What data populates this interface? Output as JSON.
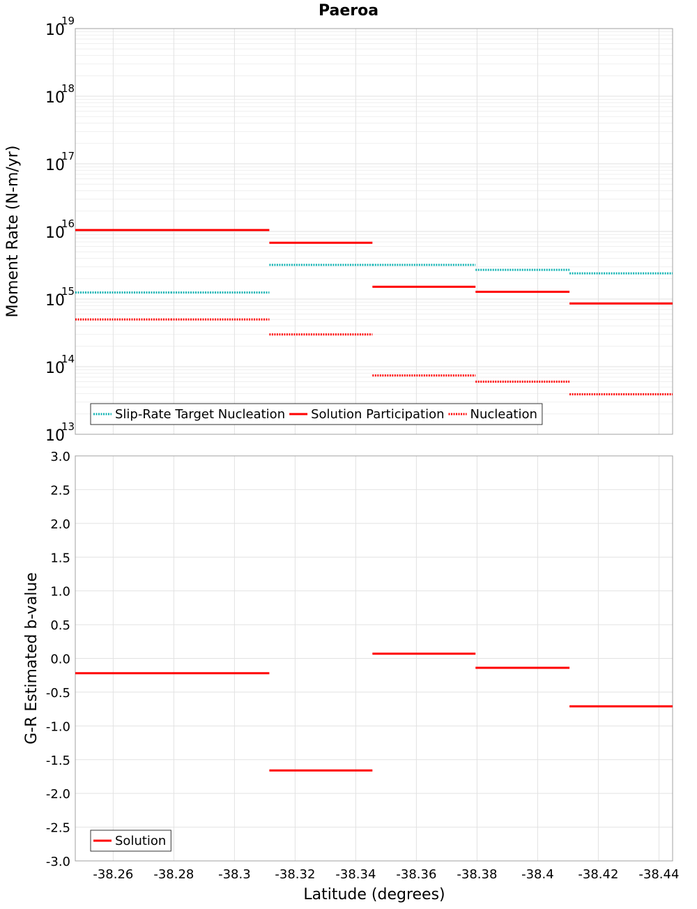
{
  "chart_data": {
    "type": "line",
    "title": "Paeroa",
    "xlabel": "Latitude (degrees)",
    "x_ticks": [
      "-38.26",
      "-38.28",
      "-38.3",
      "-38.32",
      "-38.34",
      "-38.36",
      "-38.38",
      "-38.4",
      "-38.42",
      "-38.44"
    ],
    "x_tick_values": [
      -38.26,
      -38.28,
      -38.3,
      -38.32,
      -38.34,
      -38.36,
      -38.38,
      -38.4,
      -38.42,
      -38.44
    ],
    "xlim": [
      -38.2475,
      -38.4445
    ],
    "panels": [
      {
        "ylabel": "Moment Rate (N-m/yr)",
        "yscale": "log",
        "ylim": [
          10000000000000.0,
          1e+19
        ],
        "y_ticks": [
          {
            "base": "10",
            "exp": "19"
          },
          {
            "base": "10",
            "exp": "18"
          },
          {
            "base": "10",
            "exp": "17"
          },
          {
            "base": "10",
            "exp": "16"
          },
          {
            "base": "10",
            "exp": "15"
          },
          {
            "base": "10",
            "exp": "14"
          },
          {
            "base": "10",
            "exp": "13"
          }
        ],
        "y_tick_values": [
          1e+19,
          1e+18,
          1e+17,
          1e+16,
          1000000000000000.0,
          100000000000000.0,
          10000000000000.0
        ],
        "legend": {
          "placement": "bottom-left",
          "entries": [
            "Slip-Rate Target Nucleation",
            "Solution Participation",
            "Nucleation"
          ]
        },
        "series": [
          {
            "name": "Slip-Rate Target Nucleation",
            "color": "#12b3b3",
            "style": "dotted",
            "segments": [
              {
                "x": [
                  -38.2475,
                  -38.279
                ],
                "y": 1250000000000000.0
              },
              {
                "x": [
                  -38.279,
                  -38.3115
                ],
                "y": 1250000000000000.0
              },
              {
                "x": [
                  -38.3115,
                  -38.3455
                ],
                "y": 3200000000000000.0
              },
              {
                "x": [
                  -38.3455,
                  -38.3795
                ],
                "y": 3200000000000000.0
              },
              {
                "x": [
                  -38.3795,
                  -38.4105
                ],
                "y": 2700000000000000.0
              },
              {
                "x": [
                  -38.4105,
                  -38.4445
                ],
                "y": 2400000000000000.0
              }
            ]
          },
          {
            "name": "Solution Participation",
            "color": "#ff0000",
            "style": "solid",
            "segments": [
              {
                "x": [
                  -38.2475,
                  -38.279
                ],
                "y": 1.05e+16
              },
              {
                "x": [
                  -38.279,
                  -38.3115
                ],
                "y": 1.05e+16
              },
              {
                "x": [
                  -38.3115,
                  -38.3455
                ],
                "y": 6800000000000000.0
              },
              {
                "x": [
                  -38.3455,
                  -38.3795
                ],
                "y": 1520000000000000.0
              },
              {
                "x": [
                  -38.3795,
                  -38.4105
                ],
                "y": 1280000000000000.0
              },
              {
                "x": [
                  -38.4105,
                  -38.4445
                ],
                "y": 860000000000000.0
              }
            ]
          },
          {
            "name": "Nucleation",
            "color": "#ff0000",
            "style": "dotted",
            "segments": [
              {
                "x": [
                  -38.2475,
                  -38.279
                ],
                "y": 500000000000000.0
              },
              {
                "x": [
                  -38.279,
                  -38.3115
                ],
                "y": 500000000000000.0
              },
              {
                "x": [
                  -38.3115,
                  -38.3455
                ],
                "y": 300000000000000.0
              },
              {
                "x": [
                  -38.3455,
                  -38.3795
                ],
                "y": 74000000000000.0
              },
              {
                "x": [
                  -38.3795,
                  -38.4105
                ],
                "y": 60000000000000.0
              },
              {
                "x": [
                  -38.4105,
                  -38.4445
                ],
                "y": 39000000000000.0
              }
            ]
          }
        ]
      },
      {
        "ylabel": "G-R Estimated b-value",
        "yscale": "linear",
        "ylim": [
          -3.0,
          3.0
        ],
        "y_ticks": [
          "3.0",
          "2.5",
          "2.0",
          "1.5",
          "1.0",
          "0.5",
          "0.0",
          "-0.5",
          "-1.0",
          "-1.5",
          "-2.0",
          "-2.5",
          "-3.0"
        ],
        "y_tick_values": [
          3.0,
          2.5,
          2.0,
          1.5,
          1.0,
          0.5,
          0.0,
          -0.5,
          -1.0,
          -1.5,
          -2.0,
          -2.5,
          -3.0
        ],
        "legend": {
          "placement": "bottom-left",
          "entries": [
            "Solution"
          ]
        },
        "series": [
          {
            "name": "Solution",
            "color": "#ff0000",
            "style": "solid",
            "segments": [
              {
                "x": [
                  -38.2475,
                  -38.279
                ],
                "y": -0.22
              },
              {
                "x": [
                  -38.279,
                  -38.3115
                ],
                "y": -0.22
              },
              {
                "x": [
                  -38.3115,
                  -38.3455
                ],
                "y": -1.66
              },
              {
                "x": [
                  -38.3455,
                  -38.3795
                ],
                "y": 0.07
              },
              {
                "x": [
                  -38.3795,
                  -38.4105
                ],
                "y": -0.14
              },
              {
                "x": [
                  -38.4105,
                  -38.4445
                ],
                "y": -0.71
              }
            ]
          }
        ]
      }
    ]
  }
}
